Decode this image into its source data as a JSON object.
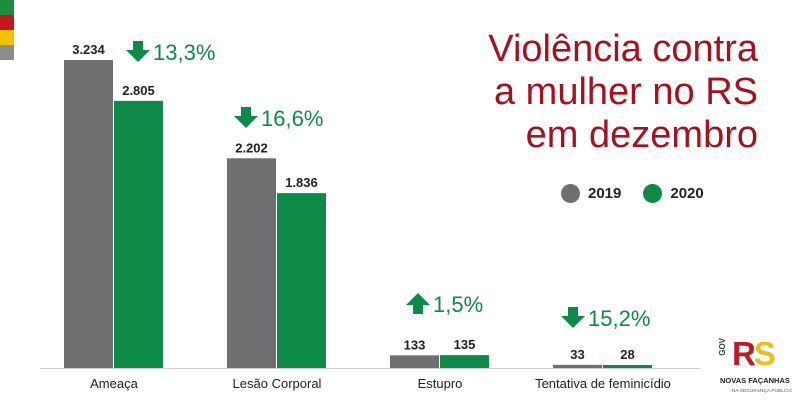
{
  "header": {
    "title_lines": [
      "Violência contra",
      "a mulher no RS",
      "em dezembro"
    ]
  },
  "colors": {
    "series_2019": "#6f6f71",
    "series_2020": "#0d8a45",
    "title": "#a3121f",
    "flag": [
      "#1e8e3e",
      "#c4161c",
      "#f4c300",
      "#8c8c8c"
    ]
  },
  "chart_data": {
    "type": "bar",
    "title": "Violência contra a mulher no RS em dezembro",
    "categories": [
      "Ameaça",
      "Lesão Corporal",
      "Estupro",
      "Tentativa de feminicídio"
    ],
    "series": [
      {
        "name": "2019",
        "values": [
          3234,
          2202,
          133,
          33
        ],
        "labels": [
          "3.234",
          "2.202",
          "133",
          "33"
        ]
      },
      {
        "name": "2020",
        "values": [
          2805,
          1836,
          135,
          28
        ],
        "labels": [
          "2.805",
          "1.836",
          "135",
          "28"
        ]
      }
    ],
    "changes": [
      {
        "label": "13,3%",
        "direction": "down"
      },
      {
        "label": "16,6%",
        "direction": "down"
      },
      {
        "label": "1,5%",
        "direction": "up"
      },
      {
        "label": "15,2%",
        "direction": "down"
      }
    ],
    "ylim": [
      0,
      3234
    ],
    "xlabel": "",
    "ylabel": "",
    "grid": false,
    "legend_position": "right"
  },
  "legend": {
    "items": [
      {
        "label": "2019",
        "color": "#6f6f71"
      },
      {
        "label": "2020",
        "color": "#0d8a45"
      }
    ]
  },
  "logo": {
    "gov": "GOV",
    "rs_r": "R",
    "rs_s": "S",
    "name": "NOVAS FAÇANHAS",
    "sub": "NA SEGURANÇA PÚBLICA"
  }
}
